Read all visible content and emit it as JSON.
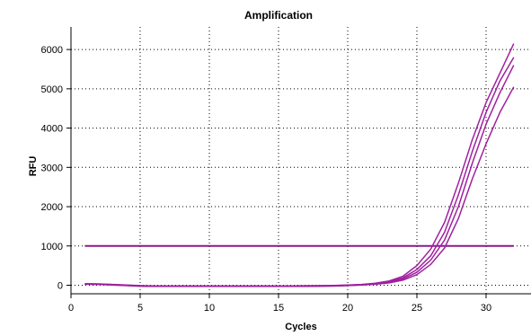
{
  "chart_data": {
    "type": "line",
    "title": "Amplification",
    "xlabel": "Cycles",
    "ylabel": "RFU",
    "xlim": [
      0,
      32.5
    ],
    "ylim": [
      -200,
      6500
    ],
    "xticks": [
      0,
      5,
      10,
      15,
      20,
      25,
      30
    ],
    "yticks": [
      0,
      1000,
      2000,
      3000,
      4000,
      5000,
      6000
    ],
    "grid": true,
    "legend": "none",
    "threshold": {
      "value": 1000,
      "x_range": [
        1,
        32
      ],
      "color": "#8b1a8b"
    },
    "curve_color": "#a020a0",
    "x": [
      1,
      2,
      3,
      4,
      5,
      6,
      7,
      8,
      9,
      10,
      11,
      12,
      13,
      14,
      15,
      16,
      17,
      18,
      19,
      20,
      21,
      22,
      23,
      24,
      25,
      26,
      27,
      28,
      29,
      30,
      31,
      32
    ],
    "series": [
      {
        "values": [
          40,
          35,
          20,
          5,
          -10,
          -15,
          -15,
          -15,
          -15,
          -15,
          -15,
          -15,
          -15,
          -15,
          -15,
          -15,
          -12,
          -10,
          -5,
          5,
          20,
          50,
          110,
          230,
          500,
          920,
          1600,
          2600,
          3700,
          4650,
          5400,
          6150
        ]
      },
      {
        "values": [
          35,
          30,
          15,
          0,
          -15,
          -20,
          -20,
          -20,
          -20,
          -20,
          -20,
          -20,
          -20,
          -20,
          -20,
          -20,
          -18,
          -15,
          -10,
          0,
          15,
          40,
          90,
          190,
          400,
          750,
          1350,
          2300,
          3400,
          4400,
          5200,
          5800
        ]
      },
      {
        "values": [
          30,
          25,
          10,
          -5,
          -20,
          -25,
          -25,
          -25,
          -25,
          -25,
          -25,
          -25,
          -25,
          -25,
          -25,
          -25,
          -22,
          -20,
          -15,
          -5,
          10,
          35,
          80,
          160,
          330,
          640,
          1150,
          2000,
          3100,
          4100,
          4900,
          5600
        ]
      },
      {
        "values": [
          25,
          20,
          5,
          -10,
          -25,
          -30,
          -30,
          -30,
          -30,
          -30,
          -30,
          -30,
          -30,
          -30,
          -30,
          -30,
          -28,
          -25,
          -20,
          -10,
          5,
          25,
          60,
          130,
          270,
          530,
          950,
          1700,
          2700,
          3600,
          4400,
          5050
        ]
      }
    ]
  }
}
